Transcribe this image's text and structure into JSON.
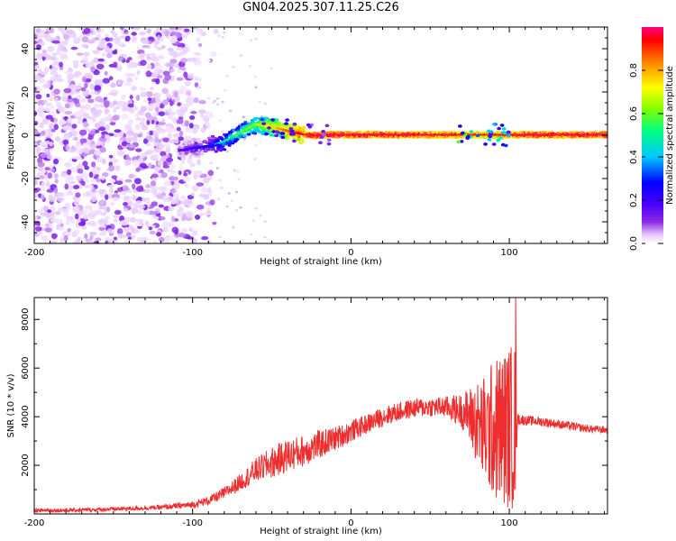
{
  "title": "GN04.2025.307.11.25.C26",
  "chart_data": [
    {
      "type": "heatmap",
      "title": "GN04.2025.307.11.25.C26",
      "xlabel": "Height of straight line (km)",
      "ylabel": "Frequency (Hz)",
      "xlim": [
        -200,
        162
      ],
      "ylim": [
        -50,
        50
      ],
      "xticks": [
        -200,
        -100,
        0,
        100
      ],
      "yticks": [
        -40,
        -20,
        0,
        20,
        40
      ],
      "colorbar": {
        "label": "Normalized spectral amplitude",
        "range": [
          0.0,
          1.0
        ],
        "ticks": [
          "0.0",
          "0.2",
          "0.4",
          "0.6",
          "0.8"
        ],
        "colors": [
          "#ffffff",
          "#e6c8ff",
          "#8a2be2",
          "#4b00ff",
          "#0000ff",
          "#00c8ff",
          "#00ff80",
          "#80ff00",
          "#ffff00",
          "#ff8000",
          "#ff0000",
          "#ff0080"
        ]
      },
      "ridge": {
        "x": [
          -108,
          -100,
          -90,
          -80,
          -70,
          -60,
          -50,
          -40,
          -30,
          -25,
          -20,
          -15,
          0,
          40,
          70,
          90,
          110,
          162
        ],
        "y": [
          -7,
          -6,
          -5,
          -3,
          1,
          5,
          4,
          2,
          0.5,
          0,
          0,
          0.2,
          0.2,
          0.2,
          0.2,
          0.2,
          0.2,
          0.2
        ],
        "amplitude": [
          0.25,
          0.3,
          0.35,
          0.5,
          0.6,
          0.65,
          0.75,
          0.85,
          0.95,
          1.0,
          1.0,
          1.0,
          1.0,
          1.0,
          0.95,
          0.9,
          1.0,
          1.0
        ]
      },
      "noise_region": {
        "x": [
          -200,
          -85
        ],
        "y": [
          -50,
          50
        ]
      }
    },
    {
      "type": "line",
      "xlabel": "Height of straight line (km)",
      "ylabel": "SNR (10 * v/v)",
      "xlim": [
        -200,
        162
      ],
      "ylim": [
        0,
        8900
      ],
      "xticks": [
        -200,
        -100,
        0,
        100
      ],
      "yticks": [
        2000,
        4000,
        6000,
        8000
      ],
      "color": "#ee2e2e",
      "series": [
        {
          "name": "SNR",
          "x": [
            -200,
            -180,
            -160,
            -140,
            -120,
            -100,
            -90,
            -80,
            -70,
            -60,
            -50,
            -40,
            -30,
            -20,
            -10,
            0,
            10,
            20,
            30,
            40,
            50,
            60,
            70,
            75,
            80,
            85,
            90,
            95,
            100,
            104,
            105,
            110,
            120,
            130,
            140,
            150,
            162
          ],
          "values": [
            150,
            150,
            180,
            220,
            270,
            380,
            550,
            850,
            1300,
            1800,
            2100,
            2400,
            2600,
            2850,
            3100,
            3400,
            3700,
            4000,
            4200,
            4350,
            4400,
            4400,
            4250,
            4050,
            3700,
            3400,
            3500,
            3500,
            3600,
            3600,
            3900,
            3850,
            3800,
            3700,
            3600,
            3500,
            3450
          ],
          "amplitude": [
            80,
            80,
            80,
            90,
            100,
            140,
            180,
            250,
            350,
            500,
            650,
            700,
            650,
            600,
            500,
            450,
            400,
            400,
            400,
            400,
            400,
            450,
            700,
            1200,
            1800,
            2400,
            2900,
            3200,
            3400,
            3500,
            250,
            200,
            200,
            180,
            180,
            160,
            160
          ]
        }
      ]
    }
  ]
}
